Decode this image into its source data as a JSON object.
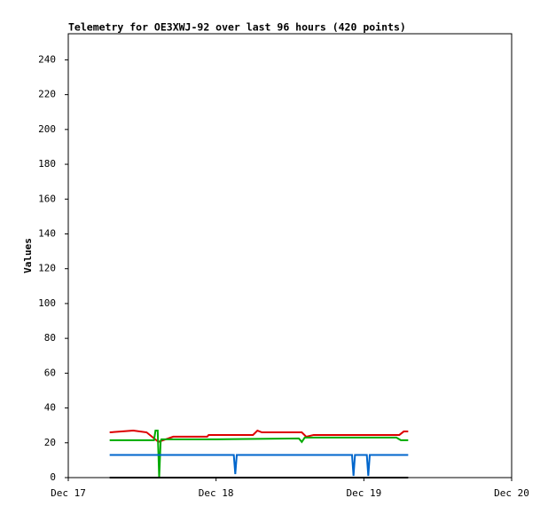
{
  "chart_data": {
    "type": "line",
    "title": "Telemetry for OE3XWJ-92 over last 96 hours (420 points)",
    "y_label": "Values",
    "xlim": [
      0,
      3
    ],
    "xticks": [
      {
        "value": 0,
        "label": "Dec 17"
      },
      {
        "value": 1,
        "label": "Dec 18"
      },
      {
        "value": 2,
        "label": "Dec 19"
      },
      {
        "value": 3,
        "label": "Dec 20"
      }
    ],
    "ylim": [
      0,
      255
    ],
    "yticks": [
      0,
      20,
      40,
      60,
      80,
      100,
      120,
      140,
      160,
      180,
      200,
      220,
      240
    ],
    "series": [
      {
        "color": "#dd0000",
        "x": [
          0.28,
          0.44,
          0.53,
          0.61,
          0.71,
          0.94,
          0.95,
          1.25,
          1.28,
          1.31,
          1.58,
          1.61,
          1.66,
          2.24,
          2.27,
          2.3
        ],
        "values": [
          26,
          27,
          26,
          20.5,
          23.5,
          23.5,
          24.5,
          24.5,
          27,
          26,
          26,
          23.5,
          24.5,
          24.5,
          26.5,
          26.5
        ]
      },
      {
        "color": "#00aa00",
        "x": [
          0.28,
          0.58,
          0.59,
          0.605,
          0.615,
          0.625,
          0.63,
          1.0,
          1.56,
          1.58,
          1.6,
          2.22,
          2.25,
          2.3
        ],
        "values": [
          21.5,
          21.5,
          27,
          27,
          0,
          21,
          22,
          22,
          22.5,
          20.5,
          23,
          23,
          21.5,
          21.5
        ]
      },
      {
        "color": "#0066cc",
        "x": [
          0.28,
          1.12,
          1.13,
          1.14,
          1.92,
          1.93,
          1.94,
          2.02,
          2.03,
          2.04,
          2.3
        ],
        "values": [
          13,
          13,
          2,
          13,
          13,
          1,
          13,
          13,
          1,
          13,
          13
        ]
      },
      {
        "color": "#000000",
        "x": [
          0.28,
          2.3
        ],
        "values": [
          0,
          0
        ]
      }
    ]
  }
}
